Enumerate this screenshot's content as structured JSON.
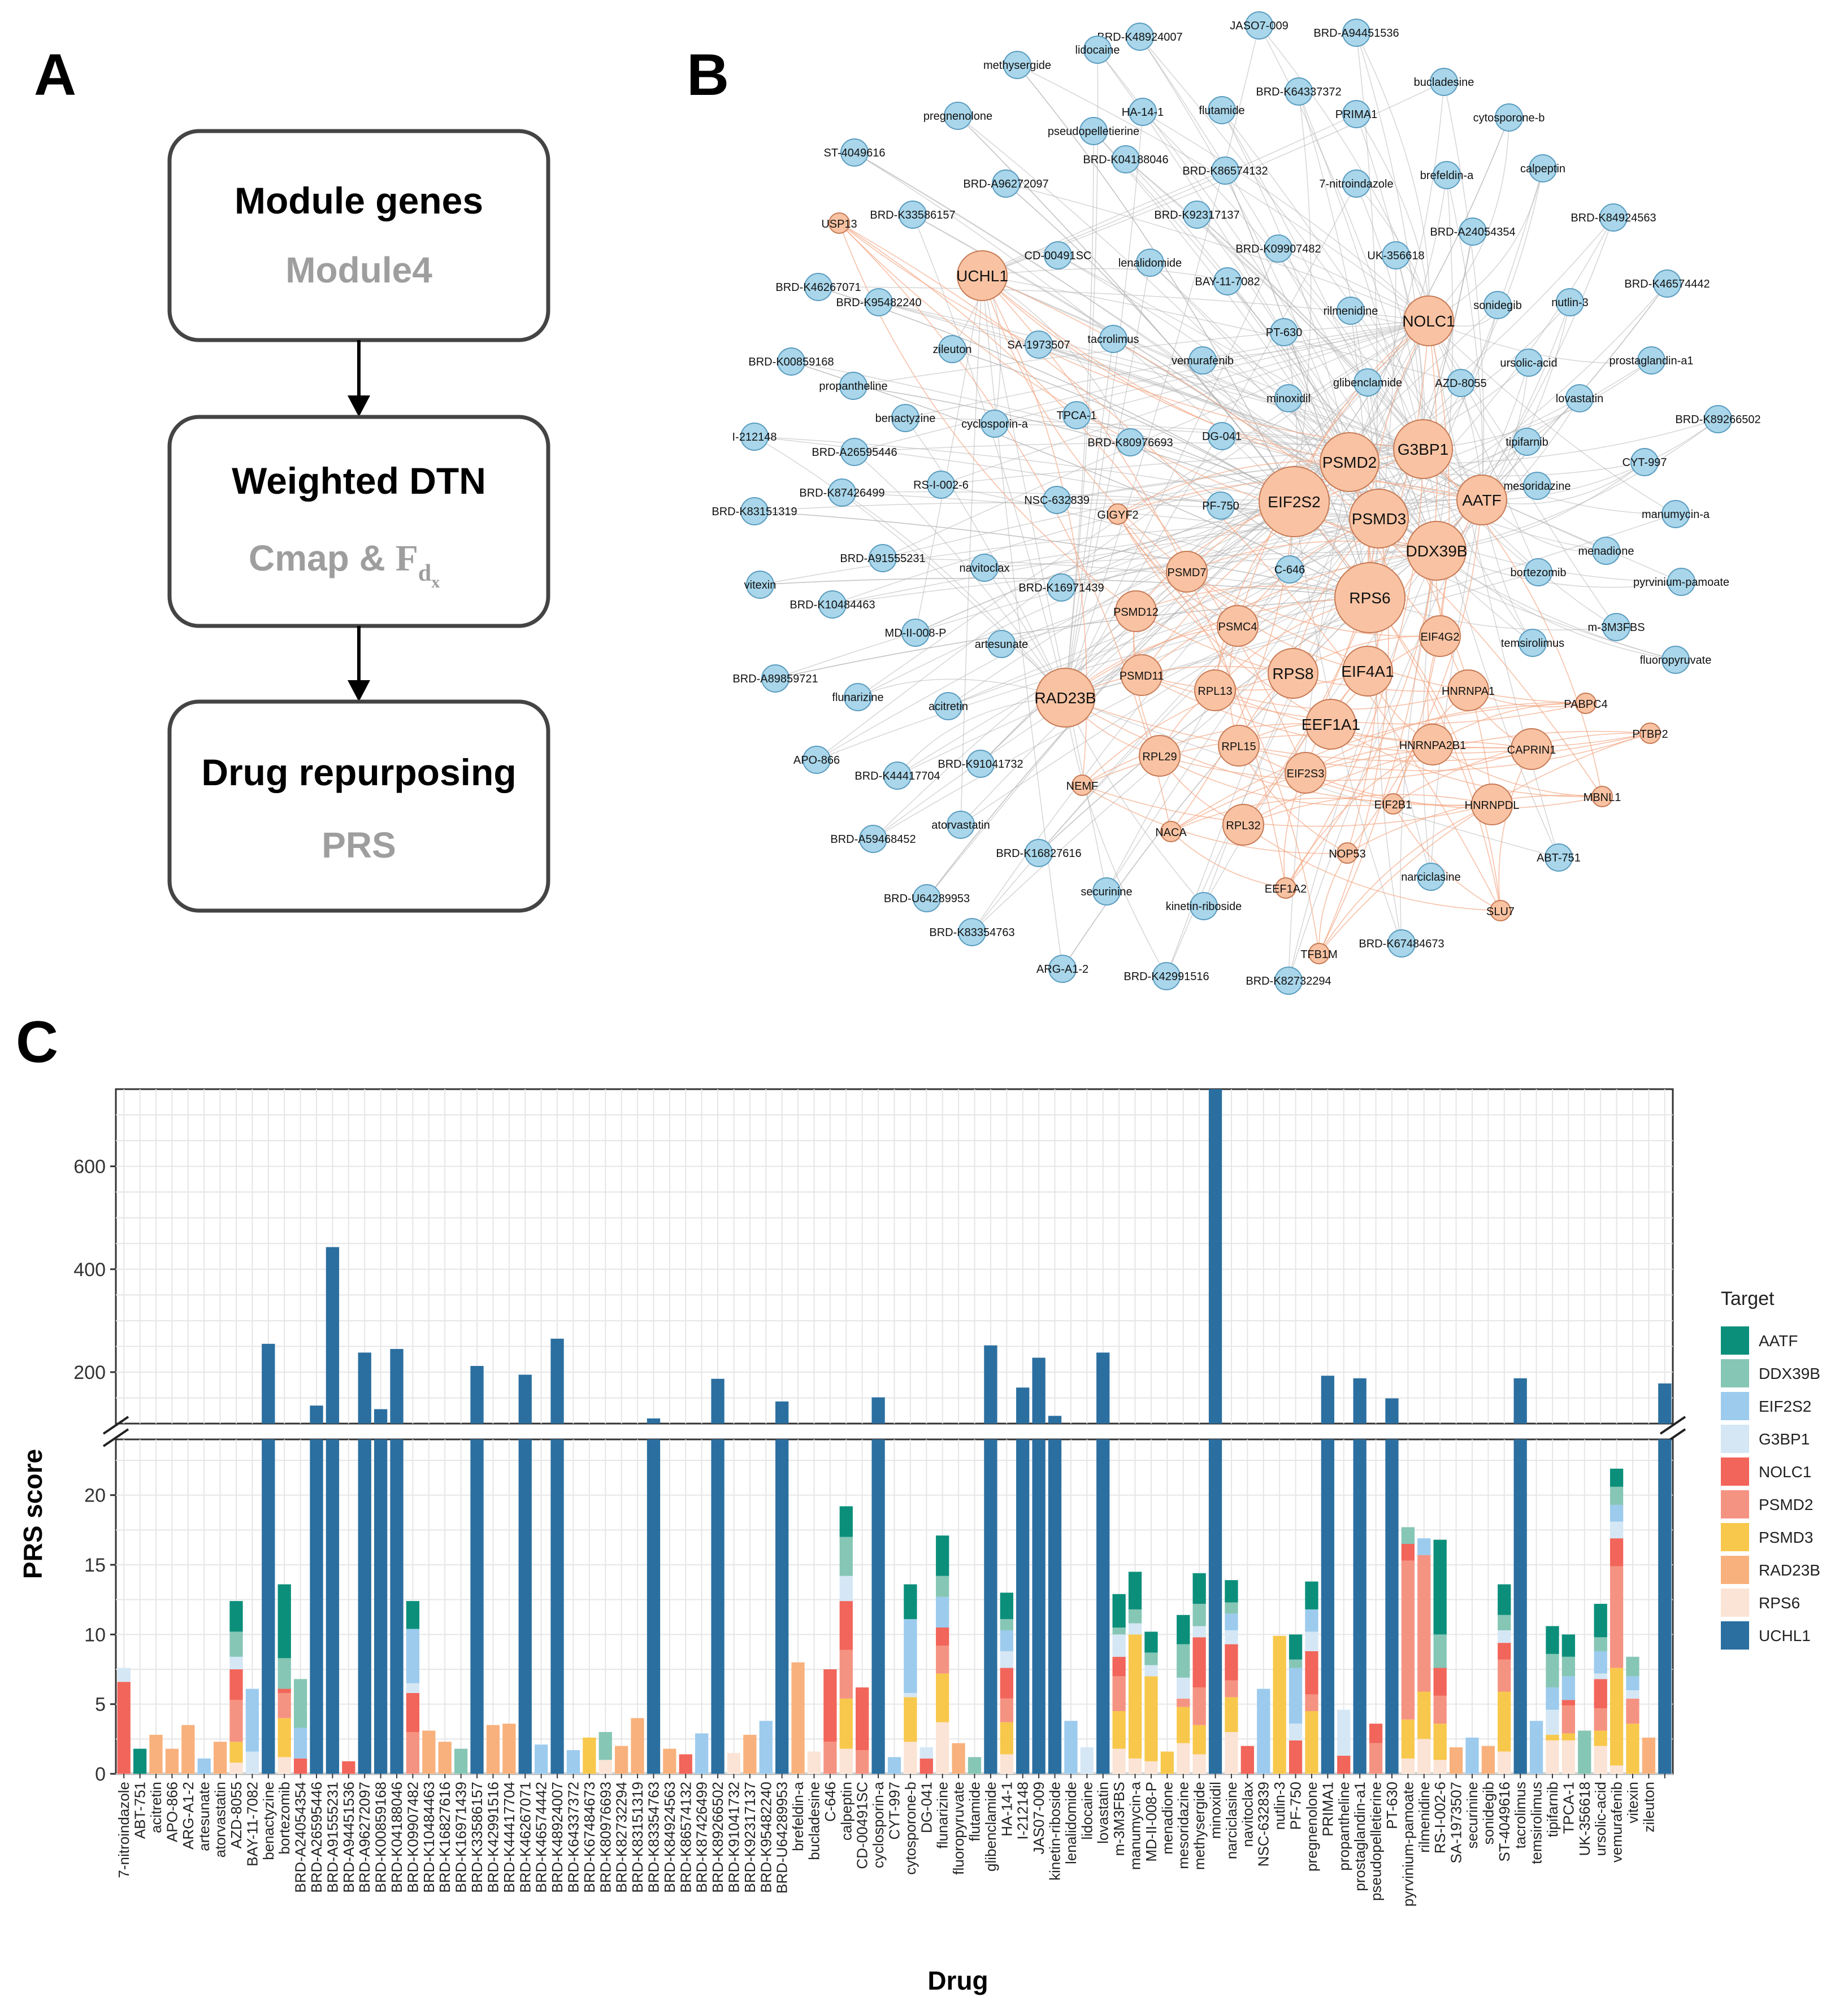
{
  "panels": {
    "a": "A",
    "b": "B",
    "c": "C"
  },
  "flow": [
    {
      "title": "Module genes",
      "subtitle": "Module4"
    },
    {
      "title": "Weighted DTN",
      "subtitle": "Cmap & ",
      "subtitle_symbol": "F",
      "subtitle_sub": "d",
      "subtitle_subsub": "x"
    },
    {
      "title": "Drug repurposing",
      "subtitle": "PRS"
    }
  ],
  "network": {
    "targets": [
      {
        "name": "UCHL1",
        "size": 3
      },
      {
        "name": "USP13",
        "size": 1
      },
      {
        "name": "NOLC1",
        "size": 3
      },
      {
        "name": "PSMD2",
        "size": 4
      },
      {
        "name": "G3BP1",
        "size": 4
      },
      {
        "name": "EIF2S2",
        "size": 5
      },
      {
        "name": "PSMD3",
        "size": 4
      },
      {
        "name": "AATF",
        "size": 3
      },
      {
        "name": "DDX39B",
        "size": 4
      },
      {
        "name": "RPS6",
        "size": 5
      },
      {
        "name": "GIGYF2",
        "size": 1
      },
      {
        "name": "PSMD7",
        "size": 2
      },
      {
        "name": "PSMD12",
        "size": 2
      },
      {
        "name": "PSMC4",
        "size": 2
      },
      {
        "name": "EIF4G2",
        "size": 2
      },
      {
        "name": "PSMD11",
        "size": 2
      },
      {
        "name": "RPL13",
        "size": 2
      },
      {
        "name": "RPS8",
        "size": 3
      },
      {
        "name": "EIF4A1",
        "size": 3
      },
      {
        "name": "HNRNPA1",
        "size": 2
      },
      {
        "name": "RAD23B",
        "size": 4
      },
      {
        "name": "EEF1A1",
        "size": 3
      },
      {
        "name": "PABPC4",
        "size": 1
      },
      {
        "name": "RPL29",
        "size": 2
      },
      {
        "name": "RPL15",
        "size": 2
      },
      {
        "name": "HNRNPA2B1",
        "size": 2
      },
      {
        "name": "CAPRIN1",
        "size": 2
      },
      {
        "name": "PTBP2",
        "size": 1
      },
      {
        "name": "NEMF",
        "size": 1
      },
      {
        "name": "EIF2S3",
        "size": 2
      },
      {
        "name": "EIF2B1",
        "size": 1
      },
      {
        "name": "HNRNPDL",
        "size": 2
      },
      {
        "name": "MBNL1",
        "size": 1
      },
      {
        "name": "NACA",
        "size": 1
      },
      {
        "name": "RPL32",
        "size": 2
      },
      {
        "name": "NOP53",
        "size": 1
      },
      {
        "name": "EEF1A2",
        "size": 1
      },
      {
        "name": "SLU7",
        "size": 1
      },
      {
        "name": "TFB1M",
        "size": 1
      }
    ],
    "drugs": [
      "JASO7-009",
      "BRD-K48924007",
      "BRD-A94451536",
      "methysergide",
      "lidocaine",
      "bucladesine",
      "BRD-K64337372",
      "pregnenolone",
      "HA-14-1",
      "flutamide",
      "PRIMA1",
      "cytosporone-b",
      "pseudopelletierine",
      "BRD-K04188046",
      "ST-4049616",
      "BRD-K86574132",
      "7-nitroindazole",
      "brefeldin-a",
      "calpeptin",
      "BRD-A96272097",
      "BRD-K33586157",
      "BRD-K92317137",
      "BRD-K84924563",
      "BRD-A24054354",
      "BRD-K09907482",
      "CD-00491SC",
      "UK-356618",
      "BRD-K46267071",
      "lenalidomide",
      "BRD-K95482240",
      "BAY-11-7082",
      "BRD-K46574442",
      "sonidegib",
      "nutlin-3",
      "rilmenidine",
      "zileuton",
      "tacrolimus",
      "SA-1973507",
      "PT-630",
      "BRD-K00859168",
      "prostaglandin-a1",
      "ursolic-acid",
      "vemurafenib",
      "propantheline",
      "glibenclamide",
      "AZD-8055",
      "lovastatin",
      "minoxidil",
      "benactyzine",
      "BRD-K89266502",
      "cyclosporin-a",
      "TPCA-1",
      "I-212148",
      "DG-041",
      "tipifarnib",
      "BRD-K80976693",
      "BRD-A26595446",
      "CYT-997",
      "RS-I-002-6",
      "mesoridazine",
      "BRD-K87426499",
      "NSC-632839",
      "PF-750",
      "BRD-K83151319",
      "manumycin-a",
      "menadione",
      "BRD-A91555231",
      "C-646",
      "navitoclax",
      "BRD-K16971439",
      "pyrvinium-pamoate",
      "vitexin",
      "bortezomib",
      "BRD-K10484463",
      "m-3M3FBS",
      "MD-II-008-P",
      "artesunate",
      "temsirolimus",
      "fluoropyruvate",
      "BRD-A89859721",
      "flunarizine",
      "acitretin",
      "APO-866",
      "BRD-K91041732",
      "BRD-K44417704",
      "atorvastatin",
      "BRD-A59468452",
      "BRD-K16827616",
      "ABT-751",
      "narciclasine",
      "securinine",
      "BRD-U64289953",
      "kinetin-riboside",
      "BRD-K83354763",
      "BRD-K67484673",
      "ARG-A1-2",
      "BRD-K42991516",
      "BRD-K82732294"
    ]
  },
  "chart_data": {
    "type": "bar",
    "stacked": true,
    "broken_y_axis": true,
    "ylabel": "PRS score",
    "xlabel": "Drug",
    "legend_title": "Target",
    "legend_position": "right",
    "y_lower_ticks": [
      0,
      5,
      10,
      15,
      20
    ],
    "y_upper_ticks": [
      200,
      400,
      600
    ],
    "y_lower_range": [
      0,
      24
    ],
    "y_upper_range": [
      100,
      750
    ],
    "targets": [
      "AATF",
      "DDX39B",
      "EIF2S2",
      "G3BP1",
      "NOLC1",
      "PSMD2",
      "PSMD3",
      "RAD23B",
      "RPS6",
      "UCHL1"
    ],
    "colors": {
      "AATF": "#0b8f7b",
      "DDX39B": "#86c6b5",
      "EIF2S2": "#9ccbee",
      "G3BP1": "#d5e7f5",
      "NOLC1": "#f2655a",
      "PSMD2": "#f59382",
      "PSMD3": "#f8c84c",
      "RAD23B": "#f8b17c",
      "RPS6": "#fbe4d5",
      "UCHL1": "#2b6fa0"
    },
    "drugs": [
      {
        "name": "7-nitroindazole",
        "v": {
          "NOLC1": 6.6,
          "G3BP1": 1.0
        }
      },
      {
        "name": "ABT-751",
        "v": {
          "AATF": 1.8
        }
      },
      {
        "name": "acitretin",
        "v": {
          "RAD23B": 2.8
        }
      },
      {
        "name": "APO-866",
        "v": {
          "RAD23B": 1.8
        }
      },
      {
        "name": "ARG-A1-2",
        "v": {
          "RAD23B": 3.5
        }
      },
      {
        "name": "artesunate",
        "v": {
          "EIF2S2": 1.1
        }
      },
      {
        "name": "atorvastatin",
        "v": {
          "RAD23B": 2.3
        }
      },
      {
        "name": "AZD-8055",
        "v": {
          "RPS6": 0.8,
          "PSMD3": 1.5,
          "PSMD2": 3.0,
          "NOLC1": 2.2,
          "G3BP1": 0.9,
          "DDX39B": 1.8,
          "AATF": 2.2
        }
      },
      {
        "name": "BAY-11-7082",
        "v": {
          "EIF2S2": 4.5,
          "G3BP1": 1.6
        }
      },
      {
        "name": "benactyzine",
        "v": {
          "UCHL1": 255
        }
      },
      {
        "name": "bortezomib",
        "v": {
          "RPS6": 1.2,
          "PSMD3": 2.8,
          "PSMD2": 1.8,
          "NOLC1": 0.3,
          "DDX39B": 2.2,
          "AATF": 5.3
        }
      },
      {
        "name": "BRD-A24054354",
        "v": {
          "NOLC1": 1.1,
          "EIF2S2": 2.2,
          "DDX39B": 3.5
        }
      },
      {
        "name": "BRD-A26595446",
        "v": {
          "UCHL1": 135
        }
      },
      {
        "name": "BRD-A91555231",
        "v": {
          "UCHL1": 443
        }
      },
      {
        "name": "BRD-A94451536",
        "v": {
          "NOLC1": 0.9
        }
      },
      {
        "name": "BRD-A96272097",
        "v": {
          "UCHL1": 238
        }
      },
      {
        "name": "BRD-K00859168",
        "v": {
          "UCHL1": 128
        }
      },
      {
        "name": "BRD-K04188046",
        "v": {
          "UCHL1": 245
        }
      },
      {
        "name": "BRD-K09907482",
        "v": {
          "PSMD2": 3.0,
          "NOLC1": 2.8,
          "G3BP1": 0.7,
          "EIF2S2": 3.9,
          "AATF": 2.0
        }
      },
      {
        "name": "BRD-K10484463",
        "v": {
          "RAD23B": 3.1
        }
      },
      {
        "name": "BRD-K16827616",
        "v": {
          "RAD23B": 2.3
        }
      },
      {
        "name": "BRD-K16971439",
        "v": {
          "DDX39B": 1.8
        }
      },
      {
        "name": "BRD-K33586157",
        "v": {
          "UCHL1": 212
        }
      },
      {
        "name": "BRD-K42991516",
        "v": {
          "RAD23B": 3.5
        }
      },
      {
        "name": "BRD-K44417704",
        "v": {
          "RAD23B": 3.6
        }
      },
      {
        "name": "BRD-K46267071",
        "v": {
          "UCHL1": 195
        }
      },
      {
        "name": "BRD-K46574442",
        "v": {
          "EIF2S2": 2.1
        }
      },
      {
        "name": "BRD-K48924007",
        "v": {
          "UCHL1": 265
        }
      },
      {
        "name": "BRD-K64337372",
        "v": {
          "EIF2S2": 1.7
        }
      },
      {
        "name": "BRD-K67484673",
        "v": {
          "PSMD3": 2.6
        }
      },
      {
        "name": "BRD-K80976693",
        "v": {
          "RPS6": 1.0,
          "DDX39B": 2.0
        }
      },
      {
        "name": "BRD-K82732294",
        "v": {
          "RAD23B": 2.0
        }
      },
      {
        "name": "BRD-K83151319",
        "v": {
          "RAD23B": 4.0
        }
      },
      {
        "name": "BRD-K83354763",
        "v": {
          "UCHL1": 110
        }
      },
      {
        "name": "BRD-K84924563",
        "v": {
          "RAD23B": 1.8
        }
      },
      {
        "name": "BRD-K86574132",
        "v": {
          "NOLC1": 1.4
        }
      },
      {
        "name": "BRD-K87426499",
        "v": {
          "EIF2S2": 2.9
        }
      },
      {
        "name": "BRD-K89266502",
        "v": {
          "UCHL1": 187
        }
      },
      {
        "name": "BRD-K91041732",
        "v": {
          "RPS6": 1.5
        }
      },
      {
        "name": "BRD-K92317137",
        "v": {
          "RAD23B": 2.8
        }
      },
      {
        "name": "BRD-K95482240",
        "v": {
          "EIF2S2": 3.8
        }
      },
      {
        "name": "BRD-U64289953",
        "v": {
          "UCHL1": 143
        }
      },
      {
        "name": "brefeldin-a",
        "v": {
          "RAD23B": 8.0
        }
      },
      {
        "name": "bucladesine",
        "v": {
          "RPS6": 1.6
        }
      },
      {
        "name": "C-646",
        "v": {
          "PSMD2": 2.3,
          "NOLC1": 5.2
        }
      },
      {
        "name": "calpeptin",
        "v": {
          "RPS6": 1.8,
          "PSMD3": 3.6,
          "PSMD2": 3.5,
          "NOLC1": 3.5,
          "G3BP1": 1.8,
          "DDX39B": 2.8,
          "AATF": 2.2
        }
      },
      {
        "name": "CD-00491SC",
        "v": {
          "PSMD2": 1.7,
          "NOLC1": 4.5
        }
      },
      {
        "name": "cyclosporin-a",
        "v": {
          "UCHL1": 151
        }
      },
      {
        "name": "CYT-997",
        "v": {
          "EIF2S2": 1.2
        }
      },
      {
        "name": "cytosporone-b",
        "v": {
          "RPS6": 2.3,
          "PSMD3": 3.2,
          "EIF2S2": 5.3,
          "G3BP1": 0.3,
          "AATF": 2.5
        }
      },
      {
        "name": "DG-041",
        "v": {
          "NOLC1": 1.1,
          "G3BP1": 0.8
        }
      },
      {
        "name": "flunarizine",
        "v": {
          "RPS6": 3.7,
          "PSMD3": 3.5,
          "PSMD2": 2.0,
          "NOLC1": 1.3,
          "EIF2S2": 2.2,
          "DDX39B": 1.5,
          "AATF": 2.9
        }
      },
      {
        "name": "fluoropyruvate",
        "v": {
          "RAD23B": 2.2
        }
      },
      {
        "name": "flutamide",
        "v": {
          "DDX39B": 1.2
        }
      },
      {
        "name": "glibenclamide",
        "v": {
          "UCHL1": 252
        }
      },
      {
        "name": "HA-14-1",
        "v": {
          "RPS6": 1.4,
          "PSMD3": 2.3,
          "PSMD2": 1.7,
          "NOLC1": 2.2,
          "G3BP1": 1.2,
          "EIF2S2": 1.5,
          "DDX39B": 0.8,
          "AATF": 1.9
        }
      },
      {
        "name": "I-212148",
        "v": {
          "UCHL1": 170
        }
      },
      {
        "name": "JAS07-009",
        "v": {
          "UCHL1": 228
        }
      },
      {
        "name": "kinetin-riboside",
        "v": {
          "UCHL1": 115
        }
      },
      {
        "name": "lenalidomide",
        "v": {
          "EIF2S2": 3.8
        }
      },
      {
        "name": "lidocaine",
        "v": {
          "G3BP1": 1.9
        }
      },
      {
        "name": "lovastatin",
        "v": {
          "UCHL1": 238
        }
      },
      {
        "name": "m-3M3FBS",
        "v": {
          "RPS6": 1.8,
          "PSMD3": 2.7,
          "PSMD2": 2.5,
          "NOLC1": 1.4,
          "G3BP1": 1.6,
          "DDX39B": 0.5,
          "AATF": 2.4
        }
      },
      {
        "name": "manumycin-a",
        "v": {
          "RPS6": 1.1,
          "PSMD3": 8.9,
          "G3BP1": 0.8,
          "DDX39B": 1.0,
          "AATF": 2.7
        }
      },
      {
        "name": "MD-II-008-P",
        "v": {
          "RPS6": 0.9,
          "PSMD3": 6.1,
          "G3BP1": 0.8,
          "DDX39B": 0.9,
          "AATF": 1.5
        }
      },
      {
        "name": "menadione",
        "v": {
          "PSMD3": 1.6
        }
      },
      {
        "name": "mesoridazine",
        "v": {
          "RPS6": 2.2,
          "PSMD3": 2.6,
          "PSMD2": 0.6,
          "G3BP1": 1.5,
          "DDX39B": 2.4,
          "AATF": 2.1
        }
      },
      {
        "name": "methysergide",
        "v": {
          "RPS6": 1.4,
          "PSMD3": 2.1,
          "PSMD2": 2.7,
          "NOLC1": 3.6,
          "G3BP1": 0.8,
          "DDX39B": 1.6,
          "AATF": 2.2
        }
      },
      {
        "name": "minoxidil",
        "v": {
          "UCHL1": 750
        }
      },
      {
        "name": "narciclasine",
        "v": {
          "RPS6": 3.0,
          "PSMD3": 2.5,
          "PSMD2": 1.2,
          "NOLC1": 2.6,
          "G3BP1": 1.0,
          "EIF2S2": 1.2,
          "DDX39B": 0.8,
          "AATF": 1.6
        }
      },
      {
        "name": "navitoclax",
        "v": {
          "NOLC1": 2.0
        }
      },
      {
        "name": "NSC-632839",
        "v": {
          "EIF2S2": 6.1
        }
      },
      {
        "name": "nutlin-3",
        "v": {
          "PSMD3": 9.9
        }
      },
      {
        "name": "PF-750",
        "v": {
          "NOLC1": 2.4,
          "EIF2S2": 4.0,
          "G3BP1": 1.2,
          "DDX39B": 0.6,
          "AATF": 1.8
        }
      },
      {
        "name": "pregnenolone",
        "v": {
          "PSMD3": 4.5,
          "NOLC1": 3.1,
          "PSMD2": 1.2,
          "G3BP1": 1.4,
          "EIF2S2": 1.6,
          "AATF": 2.0
        }
      },
      {
        "name": "PRIMA1",
        "v": {
          "UCHL1": 193
        }
      },
      {
        "name": "propantheline",
        "v": {
          "NOLC1": 1.3,
          "G3BP1": 3.3
        }
      },
      {
        "name": "prostaglandin-a1",
        "v": {
          "UCHL1": 188
        }
      },
      {
        "name": "pseudopelletierine",
        "v": {
          "PSMD2": 2.2,
          "NOLC1": 1.4
        }
      },
      {
        "name": "PT-630",
        "v": {
          "UCHL1": 149
        }
      },
      {
        "name": "pyrvinium-pamoate",
        "v": {
          "RPS6": 1.1,
          "PSMD3": 2.8,
          "PSMD2": 11.4,
          "NOLC1": 1.2,
          "DDX39B": 1.2
        }
      },
      {
        "name": "rilmenidine",
        "v": {
          "RPS6": 2.5,
          "PSMD3": 3.4,
          "PSMD2": 9.8,
          "EIF2S2": 1.2
        }
      },
      {
        "name": "RS-I-002-6",
        "v": {
          "RPS6": 1.0,
          "PSMD3": 2.6,
          "PSMD2": 2.0,
          "NOLC1": 2.0,
          "DDX39B": 2.4,
          "AATF": 6.8
        }
      },
      {
        "name": "SA-1973507",
        "v": {
          "RAD23B": 1.9
        }
      },
      {
        "name": "securinine",
        "v": {
          "EIF2S2": 2.6
        }
      },
      {
        "name": "sonidegib",
        "v": {
          "RAD23B": 2.0
        }
      },
      {
        "name": "ST-4049616",
        "v": {
          "PSMD3": 4.3,
          "PSMD2": 2.3,
          "NOLC1": 1.2,
          "G3BP1": 0.9,
          "DDX39B": 1.1,
          "AATF": 2.2,
          "RPS6": 1.6
        }
      },
      {
        "name": "tacrolimus",
        "v": {
          "UCHL1": 188
        }
      },
      {
        "name": "temsirolimus",
        "v": {
          "EIF2S2": 3.8
        }
      },
      {
        "name": "tipifarnib",
        "v": {
          "RPS6": 2.4,
          "PSMD3": 0.4,
          "G3BP1": 1.8,
          "EIF2S2": 1.6,
          "DDX39B": 2.4,
          "AATF": 2.0
        }
      },
      {
        "name": "TPCA-1",
        "v": {
          "RPS6": 2.4,
          "PSMD3": 0.5,
          "PSMD2": 2.0,
          "NOLC1": 0.4,
          "EIF2S2": 1.7,
          "DDX39B": 1.4,
          "AATF": 1.6
        }
      },
      {
        "name": "UK-356618",
        "v": {
          "DDX39B": 3.1
        }
      },
      {
        "name": "ursolic-acid",
        "v": {
          "RPS6": 2.0,
          "PSMD3": 1.1,
          "PSMD2": 1.6,
          "NOLC1": 2.1,
          "G3BP1": 0.4,
          "EIF2S2": 1.6,
          "DDX39B": 1.0,
          "AATF": 2.4
        }
      },
      {
        "name": "vemurafenib",
        "v": {
          "RPS6": 0.6,
          "PSMD3": 7.0,
          "PSMD2": 7.3,
          "NOLC1": 2.0,
          "G3BP1": 1.2,
          "EIF2S2": 1.2,
          "DDX39B": 1.3,
          "AATF": 1.3
        }
      },
      {
        "name": "vitexin",
        "v": {
          "PSMD3": 3.6,
          "PSMD2": 1.8,
          "G3BP1": 0.6,
          "EIF2S2": 1.0,
          "DDX39B": 1.4
        }
      },
      {
        "name": "zileuton",
        "v": {
          "RAD23B": 2.6
        }
      },
      {
        "name": "",
        "v": {
          "UCHL1": 178
        }
      }
    ]
  }
}
